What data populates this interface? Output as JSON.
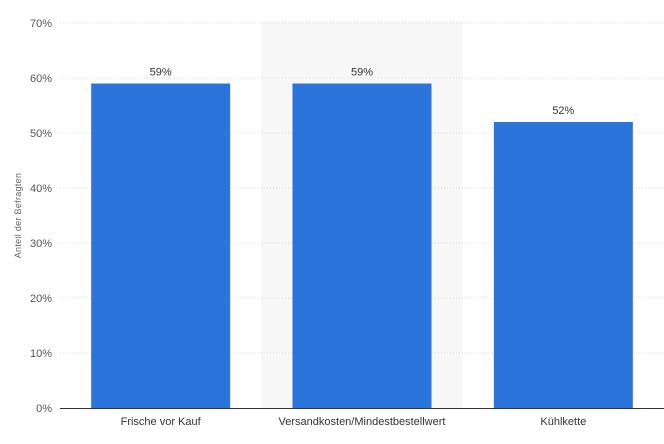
{
  "chart_data": {
    "type": "bar",
    "categories": [
      "Frische vor Kauf",
      "Versandkosten/Mindestbestellwert",
      "Kühlkette"
    ],
    "values": [
      59,
      59,
      52
    ],
    "data_labels": [
      "59%",
      "59%",
      "52%"
    ],
    "ylabel": "Anteil der Befragten",
    "xlabel": "",
    "ylim": [
      0,
      70
    ],
    "yticks": [
      0,
      10,
      20,
      30,
      40,
      50,
      60,
      70
    ],
    "ytick_labels": [
      "0%",
      "10%",
      "20%",
      "30%",
      "40%",
      "50%",
      "60%",
      "70%"
    ],
    "grid": true,
    "highlighted_category": "Versandkosten/Mindestbestellwert",
    "colors": {
      "bar": "#2a74db",
      "highlight_band": "#f7f7f7",
      "grid": "#dddddd",
      "axis": "#333333"
    }
  }
}
